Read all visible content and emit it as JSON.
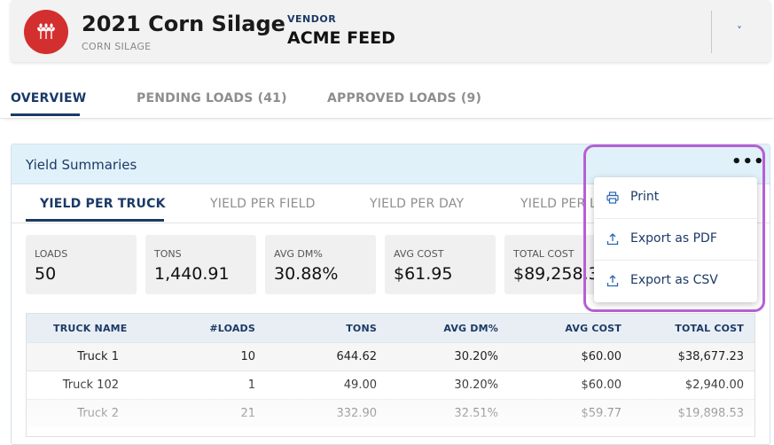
{
  "header": {
    "title": "2021 Corn Silage",
    "subtitle": "CORN SILAGE",
    "vendor_label": "VENDOR",
    "vendor_name": "ACME FEED",
    "avatar_color": "#d32f2f",
    "avatar_icon": "wheat-icon",
    "chevron": "˅"
  },
  "main_tabs": [
    {
      "label": "OVERVIEW",
      "active": true
    },
    {
      "label": "PENDING LOADS (41)",
      "active": false
    },
    {
      "label": "APPROVED LOADS (9)",
      "active": false
    }
  ],
  "yield": {
    "title": "Yield Summaries",
    "more": "•••",
    "tabs": [
      {
        "label": "YIELD PER TRUCK",
        "active": true
      },
      {
        "label": "YIELD PER FIELD",
        "active": false
      },
      {
        "label": "YIELD PER DAY",
        "active": false
      },
      {
        "label": "YIELD PER L",
        "active": false
      }
    ],
    "stats": [
      {
        "label": "LOADS",
        "value": "50"
      },
      {
        "label": "TONS",
        "value": "1,440.91"
      },
      {
        "label": "AVG DM%",
        "value": "30.88%"
      },
      {
        "label": "AVG COST",
        "value": "$61.95"
      },
      {
        "label": "TOTAL COST",
        "value": "$89,258.3"
      }
    ],
    "table": {
      "headers": [
        "TRUCK NAME",
        "#LOADS",
        "TONS",
        "AVG DM%",
        "AVG COST",
        "TOTAL COST"
      ],
      "rows": [
        [
          "Truck 1",
          "10",
          "644.62",
          "30.20%",
          "$60.00",
          "$38,677.23"
        ],
        [
          "Truck 102",
          "1",
          "49.00",
          "30.20%",
          "$60.00",
          "$2,940.00"
        ],
        [
          "Truck 2",
          "21",
          "332.90",
          "32.51%",
          "$59.77",
          "$19,898.53"
        ]
      ]
    }
  },
  "menu": {
    "items": [
      {
        "label": "Print",
        "icon": "printer-icon"
      },
      {
        "label": "Export as PDF",
        "icon": "upload-icon"
      },
      {
        "label": "Export as CSV",
        "icon": "upload-icon"
      }
    ]
  },
  "colors": {
    "brand_navy": "#1b3a66",
    "highlight": "#b560d4",
    "header_blue": "#e1f1fa"
  }
}
